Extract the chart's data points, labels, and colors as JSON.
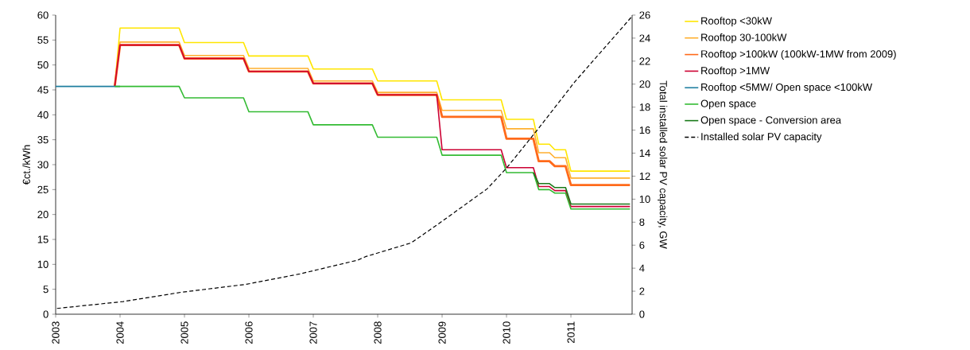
{
  "chart_data": {
    "type": "line",
    "xlabel": null,
    "ylabel": "€ct./kWh",
    "y2label": "Total installed solar PV capacity, GW",
    "x": [
      2003.917,
      2004,
      2004.917,
      2005,
      2005.917,
      2006,
      2006.917,
      2007,
      2007.917,
      2008,
      2008.917,
      2009,
      2009.917,
      2010,
      2010.417,
      2010.5,
      2010.667,
      2010.75,
      2010.917,
      2011,
      2011.917
    ],
    "series": [
      {
        "name": "Rooftop <30kW",
        "color": "#ffe600",
        "values": [
          45.7,
          57.4,
          57.4,
          54.5,
          54.5,
          51.8,
          51.8,
          49.2,
          49.2,
          46.8,
          46.8,
          43.0,
          43.0,
          39.1,
          39.1,
          34.1,
          34.1,
          33.0,
          33.0,
          28.7,
          28.7
        ]
      },
      {
        "name": "Rooftop 30-100kW",
        "color": "#ffb030",
        "values": [
          45.7,
          54.6,
          54.6,
          51.9,
          51.9,
          49.3,
          49.3,
          46.8,
          46.8,
          44.5,
          44.5,
          40.9,
          40.9,
          37.2,
          37.2,
          32.4,
          32.4,
          31.4,
          31.4,
          27.3,
          27.3
        ]
      },
      {
        "name": "Rooftop >100kW (100kW-1MW from 2009)",
        "color": "#ff6a1a",
        "values": [
          45.7,
          54.0,
          54.0,
          51.3,
          51.3,
          48.7,
          48.7,
          46.3,
          46.3,
          44.0,
          44.0,
          39.6,
          39.6,
          35.2,
          35.2,
          30.7,
          30.7,
          29.7,
          29.7,
          25.9,
          25.9
        ]
      },
      {
        "name": "Rooftop >1MW",
        "color": "#cc0033",
        "values": [
          45.7,
          54.0,
          54.0,
          51.3,
          51.3,
          48.7,
          48.7,
          46.3,
          46.3,
          44.0,
          44.0,
          33.0,
          33.0,
          29.4,
          29.4,
          25.6,
          25.6,
          24.8,
          24.8,
          21.6,
          21.6
        ]
      },
      {
        "name": "Rooftop <5MW/ Open space <100kW",
        "color": "#1f7fa0",
        "x": [
          2003,
          2003.917,
          2004
        ],
        "values": [
          45.7,
          45.7,
          45.7
        ]
      },
      {
        "name": "Open space",
        "color": "#33bb33",
        "values": [
          45.7,
          45.7,
          45.7,
          43.4,
          43.4,
          40.6,
          40.6,
          38.0,
          38.0,
          35.5,
          35.5,
          31.9,
          31.9,
          28.4,
          28.4,
          25.0,
          25.0,
          24.3,
          24.3,
          21.1,
          21.1
        ]
      },
      {
        "name": "Open space - Conversion area",
        "color": "#1a7a1a",
        "x": [
          2010.417,
          2010.5,
          2010.667,
          2010.75,
          2010.917,
          2011,
          2011.917
        ],
        "values": [
          28.4,
          26.2,
          26.2,
          25.4,
          25.4,
          22.1,
          22.1
        ]
      },
      {
        "name": "Installed solar PV capacity",
        "color": "#000000",
        "axis": "y2",
        "line_style": "dashed",
        "x": [
          2003.02,
          2004.05,
          2004.94,
          2005.96,
          2006.79,
          2007.69,
          2007.81,
          2008.52,
          2008.93,
          2009.7,
          2010,
          2010.49,
          2011.06,
          2011.56,
          2011.95
        ],
        "values": [
          0.5,
          1.1,
          1.9,
          2.6,
          3.5,
          4.7,
          5.0,
          6.2,
          7.8,
          10.9,
          12.7,
          16.1,
          20.2,
          23.4,
          25.9
        ]
      }
    ],
    "xlim": [
      2003,
      2011.95
    ],
    "xticks": [
      2003,
      2004,
      2005,
      2006,
      2007,
      2008,
      2009,
      2010,
      2011
    ],
    "ylim": [
      0,
      60
    ],
    "yticks": [
      0,
      5,
      10,
      15,
      20,
      25,
      30,
      35,
      40,
      45,
      50,
      55,
      60
    ],
    "y2lim": [
      0,
      26
    ],
    "y2ticks": [
      0,
      2,
      4,
      6,
      8,
      10,
      12,
      14,
      16,
      18,
      20,
      22,
      24,
      26
    ],
    "grid": false,
    "legend": "right",
    "marker": "none",
    "line_style": "solid"
  }
}
